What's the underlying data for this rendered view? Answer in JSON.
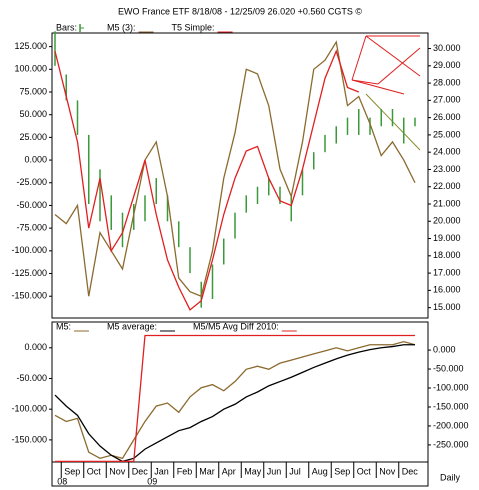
{
  "chart_data": [
    {
      "type": "line",
      "title": "EWO  France ETF    8/18/08 - 12/25/09     26.020  +0.560     CGTS ©",
      "ylim": [
        -174000,
        140000
      ],
      "yticks": [
        {
          "value": 125000,
          "label": "125.000"
        },
        {
          "value": 100000,
          "label": "100.000"
        },
        {
          "value": 75000,
          "label": "75.000"
        },
        {
          "value": 50000,
          "label": "50.000"
        },
        {
          "value": 25000,
          "label": "25.000"
        },
        {
          "value": 0,
          "label": "0.000"
        },
        {
          "value": -25000,
          "label": "-25.000"
        },
        {
          "value": -50000,
          "label": "-50.000"
        },
        {
          "value": -75000,
          "label": "-75.000"
        },
        {
          "value": -100000,
          "label": "-100.000"
        },
        {
          "value": -125000,
          "label": "-125.000"
        },
        {
          "value": -150000,
          "label": "-150.000"
        }
      ],
      "y2lim": [
        14.4,
        30.9
      ],
      "y2ticks": [
        {
          "value": 30,
          "label": "30.000"
        },
        {
          "value": 29,
          "label": "29.000"
        },
        {
          "value": 28,
          "label": "28.000"
        },
        {
          "value": 27,
          "label": "27.000"
        },
        {
          "value": 26,
          "label": "26.000"
        },
        {
          "value": 25,
          "label": "25.000"
        },
        {
          "value": 24,
          "label": "24.000"
        },
        {
          "value": 23,
          "label": "23.000"
        },
        {
          "value": 22,
          "label": "22.000"
        },
        {
          "value": 21,
          "label": "21.000"
        },
        {
          "value": 20,
          "label": "20.000"
        },
        {
          "value": 19,
          "label": "19.000"
        },
        {
          "value": 18,
          "label": "18.000"
        },
        {
          "value": 17,
          "label": "17.000"
        },
        {
          "value": 16,
          "label": "16.000"
        },
        {
          "value": 15,
          "label": "15.000"
        }
      ],
      "series": [
        {
          "name": "Bars:",
          "color": "#3a9a3a",
          "axis": "y2",
          "style": "bars",
          "high": [
            31,
            28.5,
            27,
            25,
            23,
            21.5,
            20.5,
            21,
            21.5,
            22.5,
            21.5,
            20,
            18.5,
            16.5,
            17.5,
            19,
            20.5,
            21.5,
            22,
            22.5,
            22,
            21.5,
            23,
            24,
            25,
            25.5,
            26,
            26.5,
            26,
            26.5,
            26.5,
            26,
            26
          ],
          "low": [
            29,
            27,
            25,
            21,
            20,
            19.5,
            18.5,
            19.5,
            20,
            21,
            20,
            18.5,
            17,
            15,
            15.5,
            17.5,
            19,
            20.5,
            21,
            21.5,
            21,
            20,
            21.5,
            23,
            24,
            24.5,
            25,
            25,
            25,
            25.5,
            25.5,
            24.5,
            25.5
          ]
        },
        {
          "name": "M5 (3):",
          "color": "#8b6a2e",
          "values": [
            -60000,
            -70000,
            -50000,
            -150000,
            -80000,
            -100000,
            -120000,
            -60000,
            0,
            20000,
            -40000,
            -130000,
            -145000,
            -150000,
            -100000,
            -20000,
            30000,
            100000,
            95000,
            60000,
            -10000,
            -40000,
            20000,
            100000,
            110000,
            130000,
            60000,
            70000,
            40000,
            5000,
            20000,
            0,
            -25000
          ]
        },
        {
          "name": "T5 Simple:",
          "color": "#e02020",
          "values": [
            120000,
            70000,
            20000,
            -75000,
            -20000,
            -100000,
            -80000,
            -40000,
            0,
            -60000,
            -110000,
            -140000,
            -165000,
            -155000,
            -110000,
            -60000,
            -20000,
            10000,
            15000,
            -20000,
            -45000,
            -50000,
            -10000,
            40000,
            90000,
            120000,
            80000,
            75000,
            null,
            null,
            null,
            null,
            null
          ]
        }
      ]
    },
    {
      "type": "line",
      "categories": [
        null,
        "Sep",
        null,
        "Oct",
        null,
        "Nov",
        null,
        "Dec",
        null,
        "Jan",
        null,
        "Feb",
        null,
        "Mar",
        null,
        "Apr",
        null,
        "May",
        null,
        "Jun",
        null,
        "Jul",
        null,
        "Aug",
        null,
        "Sep",
        null,
        "Oct",
        null,
        "Nov",
        null,
        "Dec",
        null
      ],
      "year_labels": [
        "08",
        "09"
      ],
      "period": "Daily",
      "ylim": [
        -186000,
        42000
      ],
      "yticks": [
        {
          "value": 0,
          "label": "0.000"
        },
        {
          "value": -50000,
          "label": "-50.000"
        },
        {
          "value": -100000,
          "label": "-100.000"
        },
        {
          "value": -150000,
          "label": "-150.000"
        }
      ],
      "y2lim": [
        -295000,
        74000
      ],
      "y2ticks": [
        {
          "value": 0,
          "label": "0.000"
        },
        {
          "value": -50000,
          "label": "-50.000"
        },
        {
          "value": -100000,
          "label": "-100.000"
        },
        {
          "value": -150000,
          "label": "-150.000"
        },
        {
          "value": -200000,
          "label": "-200.000"
        },
        {
          "value": -250000,
          "label": "-250.000"
        }
      ],
      "series": [
        {
          "name": "M5:",
          "color": "#8b6a2e",
          "values": [
            -110000,
            -120000,
            -115000,
            -170000,
            -180000,
            -175000,
            -180000,
            -150000,
            -120000,
            -95000,
            -90000,
            -105000,
            -80000,
            -65000,
            -60000,
            -70000,
            -55000,
            -35000,
            -30000,
            -35000,
            -25000,
            -20000,
            -15000,
            -10000,
            -5000,
            0,
            -5000,
            0,
            5000,
            5000,
            5000,
            10000,
            5000
          ]
        },
        {
          "name": "M5 average:",
          "color": "#000000",
          "values": [
            -77000,
            -95000,
            -110000,
            -140000,
            -160000,
            -175000,
            -185000,
            -180000,
            -165000,
            -155000,
            -145000,
            -135000,
            -130000,
            -120000,
            -112000,
            -100000,
            -92000,
            -80000,
            -72000,
            -62000,
            -55000,
            -48000,
            -40000,
            -32000,
            -25000,
            -18000,
            -12000,
            -7000,
            -3000,
            0,
            2000,
            5000,
            5000
          ]
        },
        {
          "name": "M5/M5 Avg Diff 2010:",
          "color": "#e02020",
          "values": [
            -185000,
            -185000,
            -185000,
            -185000,
            -185000,
            -185000,
            -185000,
            -185000,
            20000,
            20000,
            20000,
            20000,
            20000,
            20000,
            20000,
            20000,
            20000,
            20000,
            20000,
            20000,
            20000,
            20000,
            20000,
            20000,
            20000,
            20000,
            20000,
            20000,
            20000,
            20000,
            20000,
            20000,
            20000
          ]
        }
      ]
    }
  ]
}
